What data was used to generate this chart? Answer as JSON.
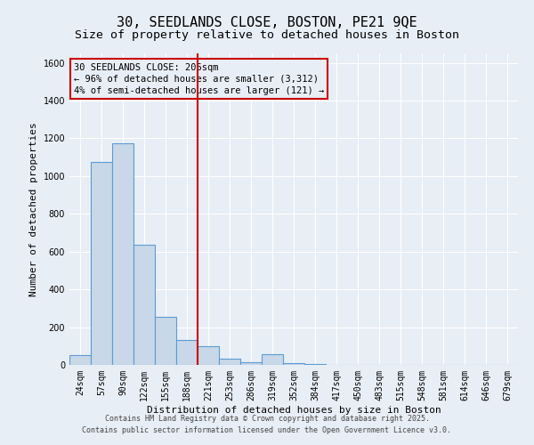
{
  "title_line1": "30, SEEDLANDS CLOSE, BOSTON, PE21 9QE",
  "title_line2": "Size of property relative to detached houses in Boston",
  "xlabel": "Distribution of detached houses by size in Boston",
  "ylabel": "Number of detached properties",
  "categories": [
    "24sqm",
    "57sqm",
    "90sqm",
    "122sqm",
    "155sqm",
    "188sqm",
    "221sqm",
    "253sqm",
    "286sqm",
    "319sqm",
    "352sqm",
    "384sqm",
    "417sqm",
    "450sqm",
    "483sqm",
    "515sqm",
    "548sqm",
    "581sqm",
    "614sqm",
    "646sqm",
    "679sqm"
  ],
  "values": [
    50,
    1075,
    1175,
    635,
    255,
    130,
    100,
    35,
    15,
    55,
    10,
    5,
    0,
    0,
    0,
    0,
    0,
    0,
    0,
    0,
    0
  ],
  "bar_color": "#c8d8e8",
  "bar_edge_color": "#5b9bd5",
  "vline_x_index": 6,
  "vline_color": "#cc0000",
  "annotation_text": "30 SEEDLANDS CLOSE: 206sqm\n← 96% of detached houses are smaller (3,312)\n4% of semi-detached houses are larger (121) →",
  "annotation_box_color": "#cc0000",
  "ylim": [
    0,
    1650
  ],
  "yticks": [
    0,
    200,
    400,
    600,
    800,
    1000,
    1200,
    1400,
    1600
  ],
  "background_color": "#e8eef5",
  "footer_line1": "Contains HM Land Registry data © Crown copyright and database right 2025.",
  "footer_line2": "Contains public sector information licensed under the Open Government Licence v3.0.",
  "title_fontsize": 11,
  "subtitle_fontsize": 9.5,
  "axis_label_fontsize": 8,
  "tick_fontsize": 7,
  "annotation_fontsize": 7.5,
  "footer_fontsize": 6
}
